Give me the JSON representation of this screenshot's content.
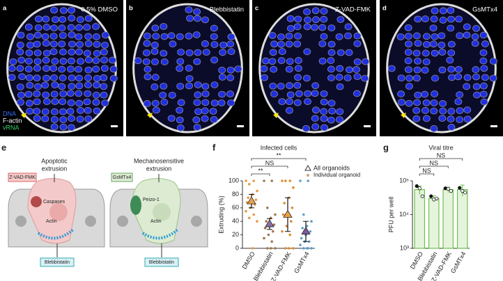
{
  "panels": [
    {
      "letter": "a",
      "label": "0.5% DMSO",
      "legend": [
        "DNA",
        "F-actin",
        "vRNA"
      ]
    },
    {
      "letter": "b",
      "label": "Blebbistatin"
    },
    {
      "letter": "c",
      "label": "Z-VAD-FMK"
    },
    {
      "letter": "d",
      "label": "GsMTx4"
    }
  ],
  "diagram": {
    "letter": "e",
    "left": {
      "title": [
        "Apoptotic",
        "extrusion"
      ],
      "inhibitor": "Z-VAD-FMK",
      "protein": "Caspases",
      "actin": "Actin",
      "bottom": "Blebbistatin"
    },
    "right": {
      "title": [
        "Mechanosensitive",
        "extrusion"
      ],
      "inhibitor": "GsMTx4",
      "protein": "Peizo-1",
      "actin": "Actin",
      "bottom": "Blebbistatin"
    }
  },
  "chart_data": [
    {
      "type": "dot",
      "letter": "f",
      "title": "Infected cells",
      "ylabel": "Extruding (%)",
      "categories": [
        "DMSO",
        "Blebbistatin",
        "Z-VAD-FMK",
        "GsMTx4"
      ],
      "ylim": [
        0,
        100
      ],
      "yticks": [
        0,
        20,
        40,
        60,
        80,
        100
      ],
      "series": [
        {
          "name": "All organoids",
          "colors": [
            "#e9a24f",
            "#8a6fa8",
            "#f0a040",
            "#7d5a9b"
          ],
          "values": [
            70,
            36,
            50,
            25
          ],
          "errors": [
            10,
            8,
            25,
            15
          ]
        },
        {
          "name": "Individual organoid",
          "colors": [
            "#e59a45",
            "#a0784e",
            "#e08a30",
            "#5f9fc8"
          ],
          "points": [
            [
              100,
              100,
              95,
              85,
              80,
              75,
              72,
              70,
              68,
              65,
              60,
              55,
              50,
              45,
              40,
              0
            ],
            [
              100,
              100,
              60,
              50,
              45,
              40,
              35,
              33,
              30,
              25,
              20,
              15,
              10,
              0,
              0,
              0
            ],
            [
              100,
              100,
              100,
              90,
              75,
              67,
              60,
              50,
              50,
              40,
              33,
              25,
              20,
              0,
              0,
              0
            ],
            [
              100,
              100,
              50,
              40,
              33,
              30,
              25,
              20,
              15,
              10,
              10,
              5,
              0,
              0,
              0,
              0
            ]
          ]
        }
      ],
      "significance": [
        "**",
        "NS",
        "**"
      ]
    },
    {
      "type": "bar",
      "letter": "g",
      "title": "Viral titre",
      "ylabel": "PFU per well",
      "categories": [
        "DMSO",
        "Blebbistatin",
        "Z-VAD-FMK",
        "GsMTx4"
      ],
      "log": true,
      "ylim": [
        1000,
        100000
      ],
      "yticks": [
        {
          "value": 1000,
          "label": "10³"
        },
        {
          "value": 10000,
          "label": "10⁴"
        },
        {
          "value": 100000,
          "label": "10⁵"
        }
      ],
      "color": "#6cc24a",
      "values": [
        55000,
        30000,
        55000,
        55000
      ],
      "errors": [
        15000,
        6000,
        10000,
        20000
      ],
      "points": [
        [
          70000,
          60000,
          35000
        ],
        [
          35000,
          28000,
          30000
        ],
        [
          60000,
          58000,
          50000
        ],
        [
          62000,
          50000,
          45000
        ]
      ],
      "significance": [
        "NS",
        "NS",
        "NS"
      ]
    }
  ]
}
